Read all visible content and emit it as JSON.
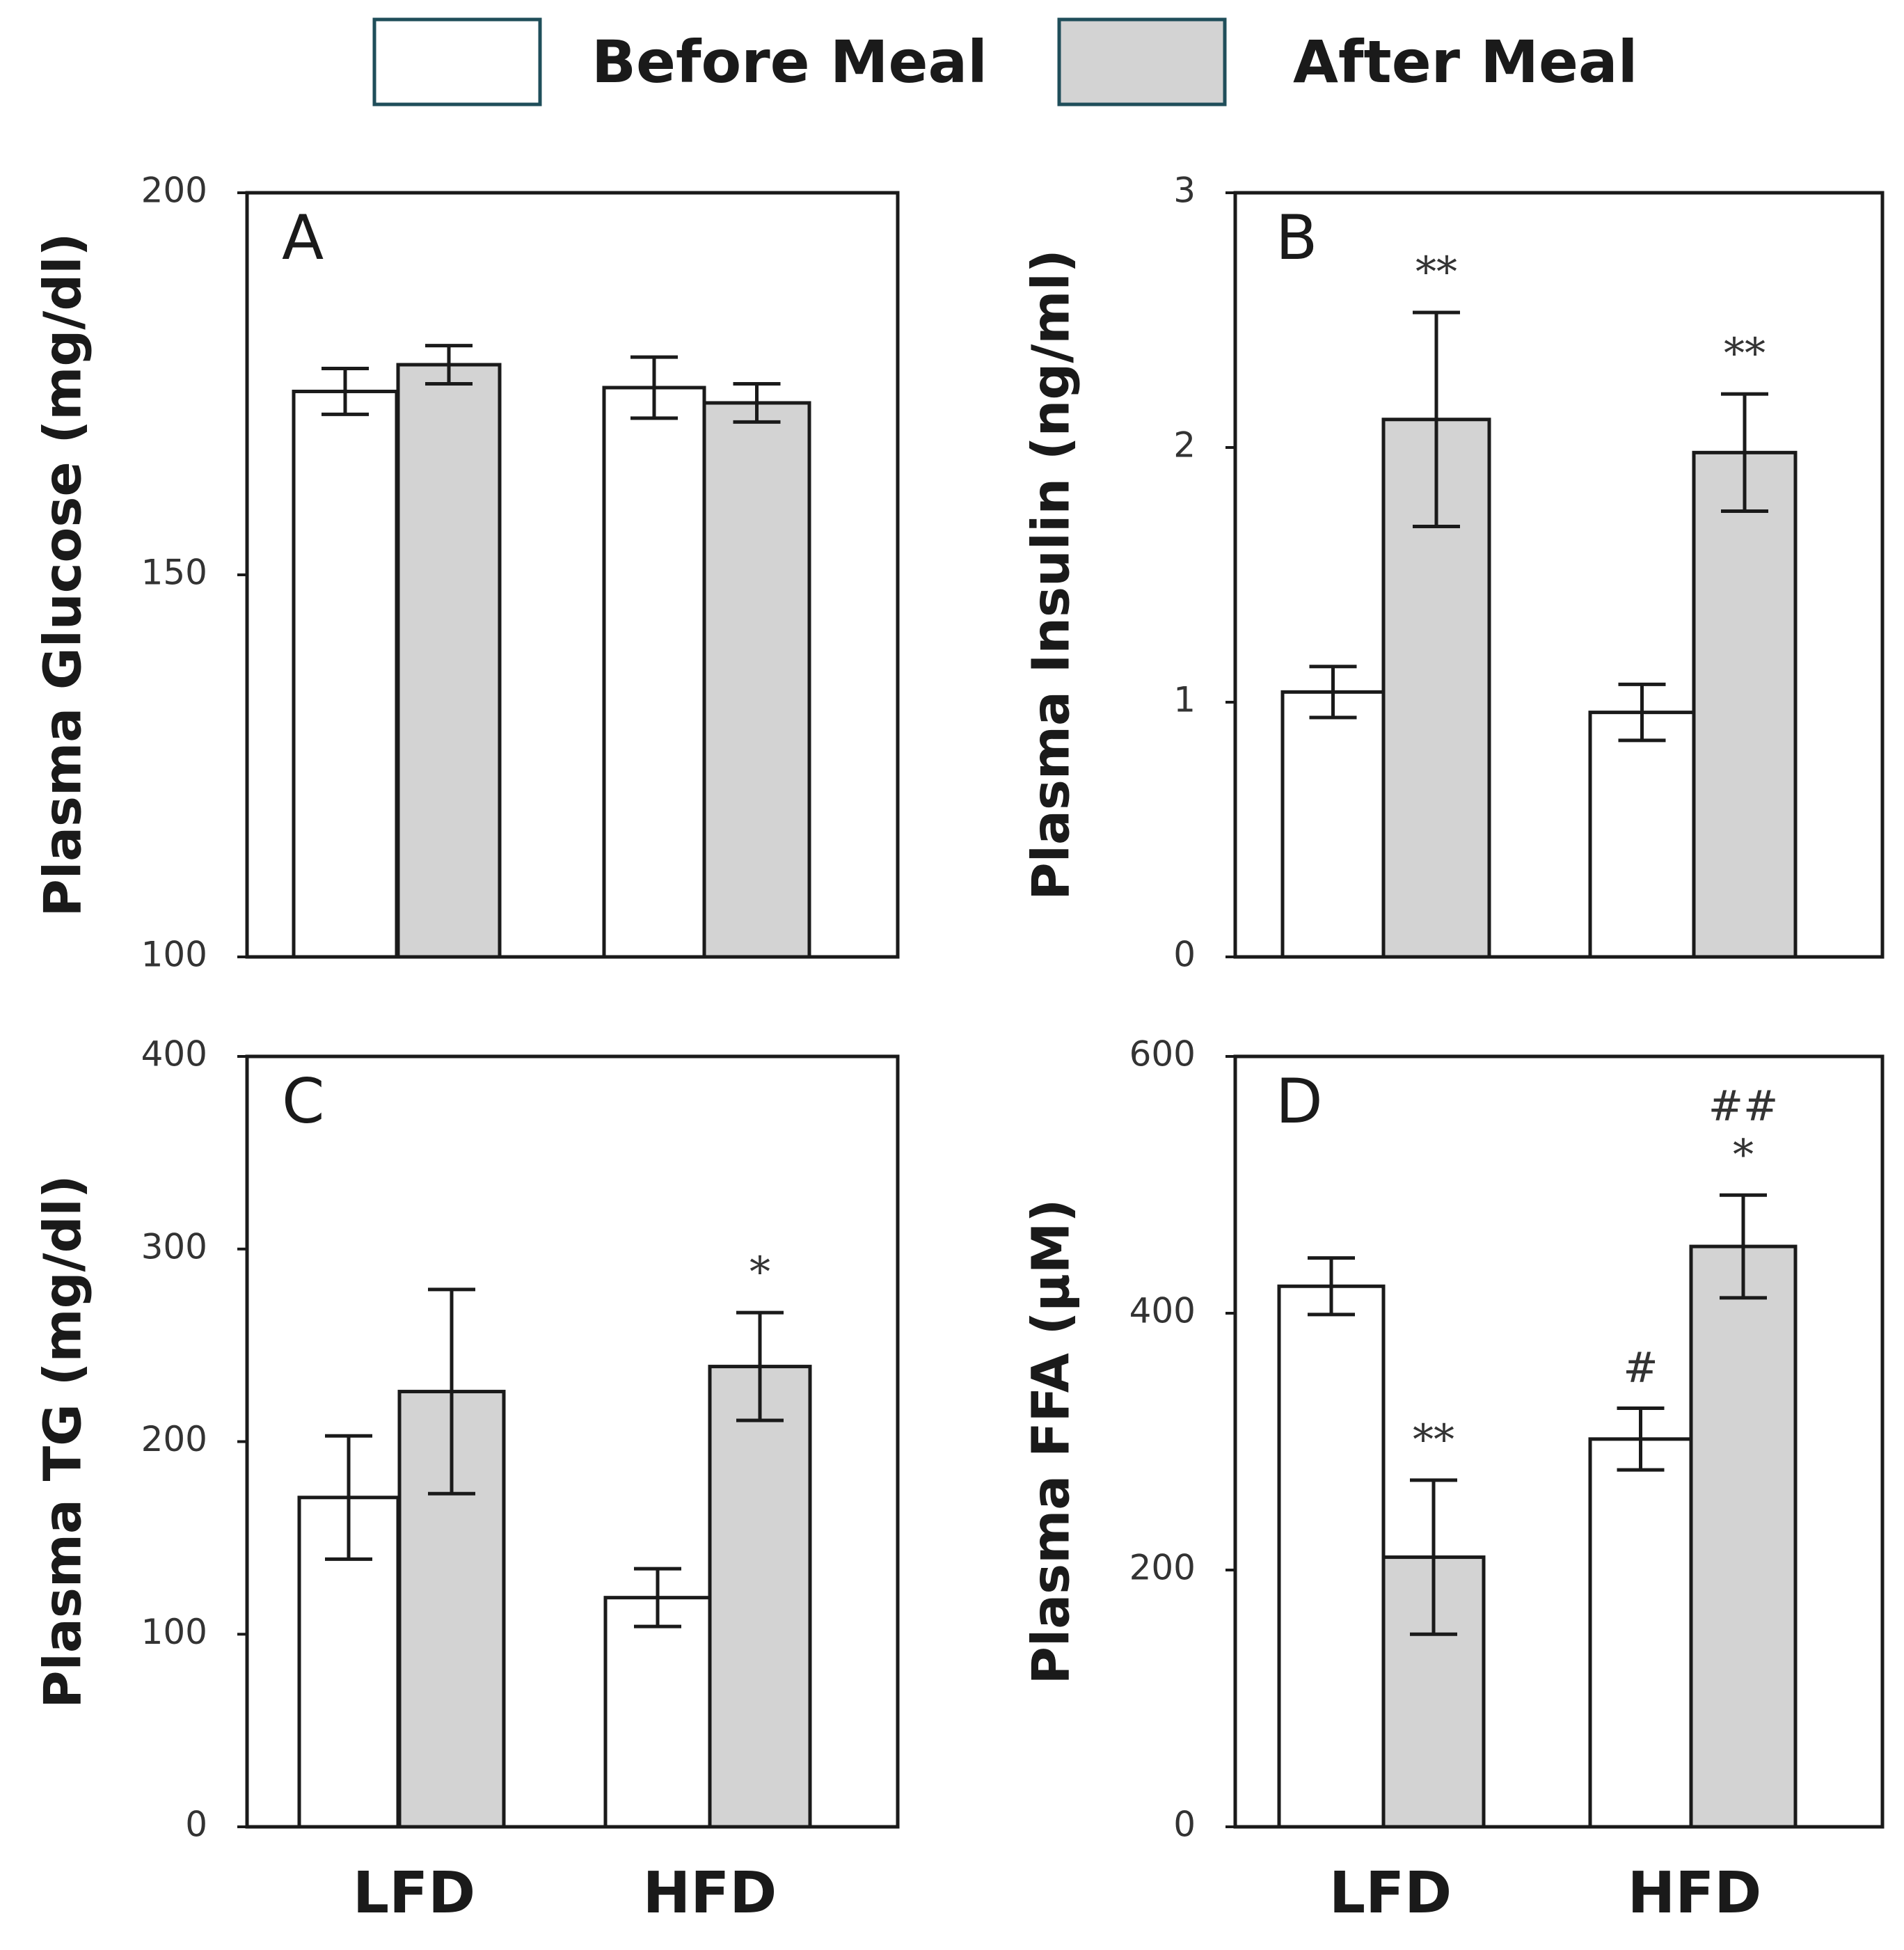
{
  "legend": {
    "items": [
      {
        "label": "Before Meal",
        "color": "#ffffff"
      },
      {
        "label": "After Meal",
        "color": "#d3d3d3"
      }
    ],
    "border_color": "#1f4e5a"
  },
  "colors": {
    "before": "#ffffff",
    "after": "#d3d3d3",
    "stroke": "#1a1a1a"
  },
  "x_categories": [
    "LFD",
    "HFD"
  ],
  "chart_data": [
    {
      "type": "bar",
      "panel": "A",
      "ylabel": "Plasma Glucose (mg/dl)",
      "ylim": [
        100,
        200
      ],
      "yticks": [
        "100",
        "150",
        "200"
      ],
      "categories": [
        "LFD",
        "HFD"
      ],
      "series": [
        {
          "name": "Before Meal",
          "values": [
            174,
            174.5
          ],
          "errors": [
            3,
            4
          ]
        },
        {
          "name": "After Meal",
          "values": [
            177.5,
            172.5
          ],
          "errors": [
            2.5,
            2.5
          ]
        }
      ],
      "annotations": []
    },
    {
      "type": "bar",
      "panel": "B",
      "ylabel": "Plasma Insulin (ng/ml)",
      "ylim": [
        0,
        3
      ],
      "yticks": [
        "0",
        "1",
        "2",
        "3"
      ],
      "categories": [
        "LFD",
        "HFD"
      ],
      "series": [
        {
          "name": "Before Meal",
          "values": [
            1.04,
            0.96
          ],
          "errors": [
            0.1,
            0.11
          ]
        },
        {
          "name": "After Meal",
          "values": [
            2.11,
            1.98
          ],
          "errors": [
            0.42,
            0.23
          ]
        }
      ],
      "annotations": [
        {
          "series": 1,
          "category": 0,
          "text": "**"
        },
        {
          "series": 1,
          "category": 1,
          "text": "**"
        }
      ]
    },
    {
      "type": "bar",
      "panel": "C",
      "ylabel": "Plasma TG (mg/dl)",
      "ylim": [
        0,
        400
      ],
      "yticks": [
        "0",
        "100",
        "200",
        "300",
        "400"
      ],
      "categories": [
        "LFD",
        "HFD"
      ],
      "series": [
        {
          "name": "Before Meal",
          "values": [
            171,
            119
          ],
          "errors": [
            32,
            15
          ]
        },
        {
          "name": "After Meal",
          "values": [
            226,
            239
          ],
          "errors": [
            53,
            28
          ]
        }
      ],
      "annotations": [
        {
          "series": 1,
          "category": 1,
          "text": "*"
        }
      ]
    },
    {
      "type": "bar",
      "panel": "D",
      "ylabel": "Plasma FFA (μM)",
      "ylim": [
        0,
        600
      ],
      "yticks": [
        "0",
        "200",
        "400",
        "600"
      ],
      "categories": [
        "LFD",
        "HFD"
      ],
      "series": [
        {
          "name": "Before Meal",
          "values": [
            421,
            302
          ],
          "errors": [
            22,
            24
          ]
        },
        {
          "name": "After Meal",
          "values": [
            210,
            452
          ],
          "errors": [
            60,
            40
          ]
        }
      ],
      "annotations": [
        {
          "series": 1,
          "category": 0,
          "text": "**"
        },
        {
          "series": 0,
          "category": 1,
          "text": "#"
        },
        {
          "series": 1,
          "category": 1,
          "text": "##"
        },
        {
          "series": 1,
          "category": 1,
          "text": "*"
        }
      ]
    }
  ]
}
